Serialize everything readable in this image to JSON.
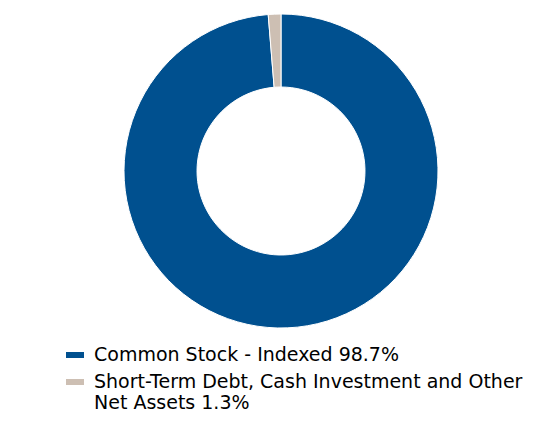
{
  "chart_data": {
    "type": "pie",
    "categories": [
      "Common Stock - Indexed",
      "Short-Term Debt, Cash Investment and Other Net Assets"
    ],
    "values": [
      98.7,
      1.3
    ],
    "value_labels": [
      "98.7%",
      "1.3%"
    ],
    "colors": [
      "#00508f",
      "#cdbfb3"
    ],
    "legend": "bottom"
  }
}
